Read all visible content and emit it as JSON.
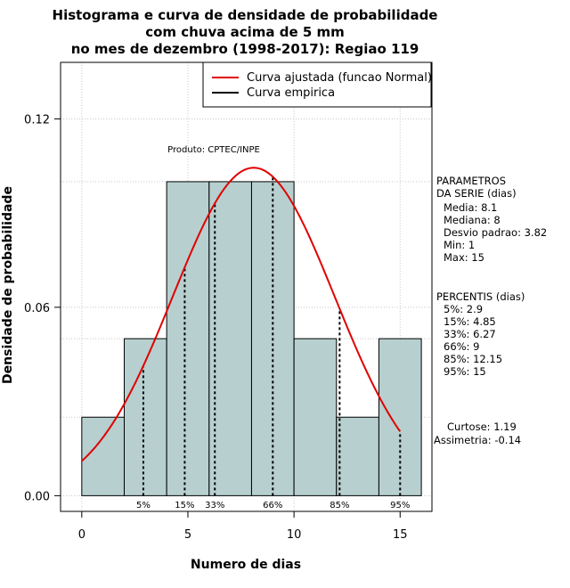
{
  "chart_data": {
    "type": "bar",
    "title_lines": [
      "Histograma e curva de densidade de probabilidade",
      "com chuva acima de 5 mm",
      "no mes de dezembro (1998-2017): Regiao 119"
    ],
    "xlabel": "Numero de dias",
    "ylabel": "Densidade de probabilidade",
    "xlim": [
      -1,
      16.5
    ],
    "ylim": [
      -0.005,
      0.138
    ],
    "x_ticks": [
      0,
      5,
      10,
      15
    ],
    "x_tick_labels": [
      "0",
      "5",
      "10",
      "15"
    ],
    "y_ticks": [
      0.0,
      0.06,
      0.12
    ],
    "y_tick_labels": [
      "0.00",
      "0.06",
      "0.12"
    ],
    "grid": true,
    "legend_position": "top-right",
    "legend": [
      {
        "label": "Curva ajustada (funcao Normal)",
        "color": "#e00000"
      },
      {
        "label": "Curva empirica",
        "color": "#000000"
      }
    ],
    "product_label": "Produto: CPTEC/INPE",
    "bar_color": "#b7cfcf",
    "curve_color": "#e00000",
    "histogram": {
      "bin_edges": [
        0,
        2,
        4,
        6,
        8,
        10,
        12,
        14,
        16
      ],
      "densities": [
        0.025,
        0.05,
        0.1,
        0.1,
        0.1,
        0.05,
        0.025,
        0.05
      ]
    },
    "normal_fit": {
      "mean": 8.1,
      "sd": 3.82,
      "x_range": [
        0,
        15
      ]
    },
    "percentile_marks": [
      {
        "label": "5%",
        "x": 2.9
      },
      {
        "label": "15%",
        "x": 4.85
      },
      {
        "label": "33%",
        "x": 6.27
      },
      {
        "label": "66%",
        "x": 9
      },
      {
        "label": "85%",
        "x": 12.15
      },
      {
        "label": "95%",
        "x": 15
      }
    ]
  },
  "parameters": {
    "heading": [
      "PARAMETROS",
      "DA SERIE (dias)"
    ],
    "lines": [
      "Media: 8.1",
      "Mediana: 8",
      "Desvio padrao: 3.82",
      "Min: 1",
      "Max: 15"
    ]
  },
  "percentiles": {
    "heading": "PERCENTIS (dias)",
    "lines": [
      "5%: 2.9",
      "15%: 4.85",
      "33%: 6.27",
      "66%: 9",
      "85%: 12.15",
      "95%: 15"
    ]
  },
  "shape": {
    "lines": [
      "Curtose: 1.19",
      "Assimetria: -0.14"
    ]
  }
}
